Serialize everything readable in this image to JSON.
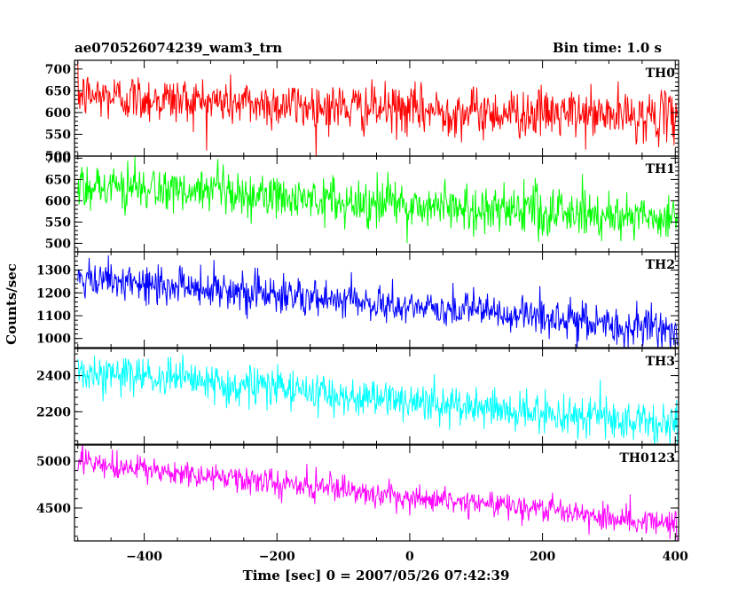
{
  "header": {
    "title": "ae070526074239_wam3_trn",
    "bin_time": "Bin time: 1.0 s"
  },
  "chart_data": {
    "type": "line",
    "title": "ae070526074239_wam3_trn",
    "xlabel": "Time [sec] 0 = 2007/05/26 07:42:39",
    "ylabel": "Counts/sec",
    "xlim": [
      -505,
      405
    ],
    "x_ticks": [
      -400,
      -200,
      0,
      200,
      400
    ],
    "x_tick_labels": [
      "−400",
      "−200",
      "0",
      "200",
      "400"
    ],
    "x_step": 1.0,
    "grid": false,
    "legend": "none",
    "panels": [
      {
        "label": "TH0",
        "color": "#ff0000",
        "ylim": [
          500,
          720
        ],
        "y_ticks": [
          500,
          550,
          600,
          650,
          700
        ],
        "y_tick_labels": [
          "500",
          "550",
          "600",
          "650",
          "700"
        ],
        "trend": [
          [
            -500,
            640
          ],
          [
            -300,
            625
          ],
          [
            0,
            605
          ],
          [
            400,
            590
          ]
        ],
        "noise_sd": 28
      },
      {
        "label": "TH1",
        "color": "#00ff00",
        "ylim": [
          480,
          705
        ],
        "y_ticks": [
          500,
          550,
          600,
          650,
          700
        ],
        "y_tick_labels": [
          "500",
          "550",
          "600",
          "650",
          "700"
        ],
        "trend": [
          [
            -500,
            640
          ],
          [
            -300,
            615
          ],
          [
            0,
            590
          ],
          [
            400,
            560
          ]
        ],
        "noise_sd": 28
      },
      {
        "label": "TH2",
        "color": "#0000ff",
        "ylim": [
          960,
          1380
        ],
        "y_ticks": [
          1000,
          1100,
          1200,
          1300
        ],
        "y_tick_labels": [
          "1000",
          "1100",
          "1200",
          "1300"
        ],
        "trend": [
          [
            -500,
            1250
          ],
          [
            -300,
            1225
          ],
          [
            -100,
            1160
          ],
          [
            100,
            1120
          ],
          [
            400,
            1030
          ]
        ],
        "noise_sd": 42
      },
      {
        "label": "TH3",
        "color": "#00ffff",
        "ylim": [
          2020,
          2550
        ],
        "y_ticks": [
          2200,
          2400
        ],
        "y_tick_labels": [
          "2200",
          "2400"
        ],
        "trend": [
          [
            -500,
            2420
          ],
          [
            -200,
            2330
          ],
          [
            100,
            2220
          ],
          [
            400,
            2130
          ]
        ],
        "noise_sd": 55
      },
      {
        "label": "TH0123",
        "color": "#ff00ff",
        "ylim": [
          4150,
          5170
        ],
        "y_ticks": [
          4500,
          5000
        ],
        "y_tick_labels": [
          "4500",
          "5000"
        ],
        "trend": [
          [
            -500,
            4980
          ],
          [
            -300,
            4830
          ],
          [
            0,
            4620
          ],
          [
            200,
            4500
          ],
          [
            400,
            4320
          ]
        ],
        "noise_sd": 70
      }
    ]
  }
}
